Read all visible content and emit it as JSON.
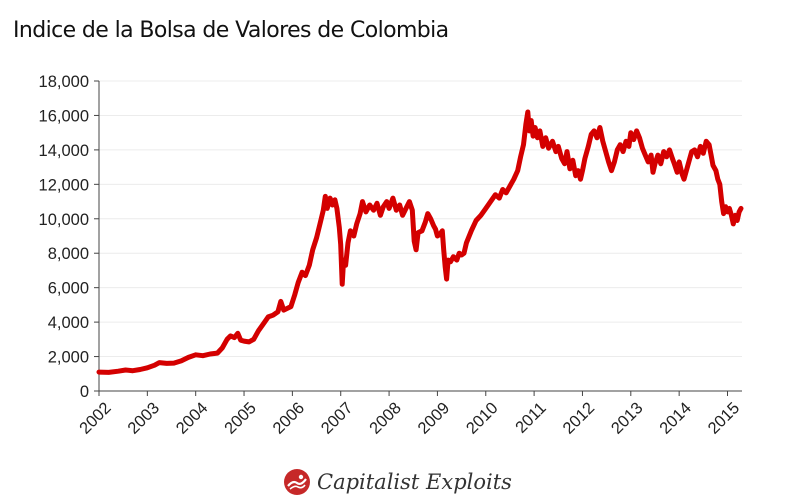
{
  "title": "Indice de la Bolsa de Valores de Colombia",
  "footer": {
    "brand": "Capitalist Exploits",
    "logo_icon": "capitalist-exploits-logo-icon"
  },
  "colors": {
    "line": "#d40000",
    "grid": "#ececec",
    "axis": "#444444"
  },
  "chart_data": {
    "type": "line",
    "title": "Indice de la Bolsa de Valores de Colombia",
    "xlabel": "",
    "ylabel": "",
    "xlim": [
      2002,
      2015.3
    ],
    "ylim": [
      0,
      18000
    ],
    "y_ticks": [
      0,
      2000,
      4000,
      6000,
      8000,
      10000,
      12000,
      14000,
      16000,
      18000
    ],
    "y_tick_labels": [
      "0",
      "2,000",
      "4,000",
      "6,000",
      "8,000",
      "10,000",
      "12,000",
      "14,000",
      "16,000",
      "18,000"
    ],
    "x_ticks": [
      2002,
      2003,
      2004,
      2005,
      2006,
      2007,
      2008,
      2009,
      2010,
      2011,
      2012,
      2013,
      2014,
      2015
    ],
    "x_tick_labels": [
      "2002",
      "2003",
      "2004",
      "2005",
      "2006",
      "2007",
      "2008",
      "2009",
      "2010",
      "2011",
      "2012",
      "2013",
      "2014",
      "2015"
    ],
    "grid": true,
    "series": [
      {
        "color": "#d40000",
        "points": [
          [
            2002.0,
            1100
          ],
          [
            2002.2,
            1080
          ],
          [
            2002.4,
            1150
          ],
          [
            2002.55,
            1220
          ],
          [
            2002.7,
            1180
          ],
          [
            2002.85,
            1250
          ],
          [
            2003.0,
            1350
          ],
          [
            2003.15,
            1500
          ],
          [
            2003.25,
            1650
          ],
          [
            2003.4,
            1600
          ],
          [
            2003.55,
            1620
          ],
          [
            2003.7,
            1750
          ],
          [
            2003.85,
            1950
          ],
          [
            2004.0,
            2100
          ],
          [
            2004.15,
            2050
          ],
          [
            2004.3,
            2150
          ],
          [
            2004.45,
            2200
          ],
          [
            2004.55,
            2500
          ],
          [
            2004.65,
            3000
          ],
          [
            2004.72,
            3200
          ],
          [
            2004.8,
            3100
          ],
          [
            2004.87,
            3350
          ],
          [
            2004.93,
            2950
          ],
          [
            2005.0,
            2900
          ],
          [
            2005.1,
            2850
          ],
          [
            2005.2,
            3000
          ],
          [
            2005.3,
            3500
          ],
          [
            2005.4,
            3900
          ],
          [
            2005.5,
            4300
          ],
          [
            2005.6,
            4400
          ],
          [
            2005.7,
            4600
          ],
          [
            2005.76,
            5200
          ],
          [
            2005.82,
            4700
          ],
          [
            2005.9,
            4800
          ],
          [
            2005.97,
            4900
          ],
          [
            2006.05,
            5600
          ],
          [
            2006.12,
            6300
          ],
          [
            2006.2,
            6900
          ],
          [
            2006.27,
            6700
          ],
          [
            2006.35,
            7300
          ],
          [
            2006.42,
            8200
          ],
          [
            2006.5,
            8900
          ],
          [
            2006.58,
            9800
          ],
          [
            2006.64,
            10500
          ],
          [
            2006.68,
            11300
          ],
          [
            2006.72,
            10600
          ],
          [
            2006.78,
            11200
          ],
          [
            2006.83,
            10800
          ],
          [
            2006.88,
            11100
          ],
          [
            2006.92,
            10600
          ],
          [
            2006.97,
            9500
          ],
          [
            2007.0,
            8500
          ],
          [
            2007.03,
            6200
          ],
          [
            2007.06,
            7600
          ],
          [
            2007.1,
            7300
          ],
          [
            2007.15,
            8600
          ],
          [
            2007.2,
            9300
          ],
          [
            2007.27,
            9000
          ],
          [
            2007.33,
            9700
          ],
          [
            2007.4,
            10300
          ],
          [
            2007.45,
            11000
          ],
          [
            2007.52,
            10400
          ],
          [
            2007.6,
            10800
          ],
          [
            2007.68,
            10500
          ],
          [
            2007.75,
            10900
          ],
          [
            2007.82,
            10200
          ],
          [
            2007.88,
            10700
          ],
          [
            2007.95,
            11000
          ],
          [
            2008.0,
            10600
          ],
          [
            2008.08,
            11200
          ],
          [
            2008.15,
            10500
          ],
          [
            2008.22,
            10800
          ],
          [
            2008.28,
            10200
          ],
          [
            2008.35,
            10600
          ],
          [
            2008.42,
            11000
          ],
          [
            2008.48,
            10500
          ],
          [
            2008.52,
            8700
          ],
          [
            2008.56,
            8200
          ],
          [
            2008.6,
            9200
          ],
          [
            2008.68,
            9300
          ],
          [
            2008.75,
            9800
          ],
          [
            2008.8,
            10300
          ],
          [
            2008.86,
            10000
          ],
          [
            2008.92,
            9600
          ],
          [
            2008.96,
            9400
          ],
          [
            2009.0,
            9000
          ],
          [
            2009.05,
            9100
          ],
          [
            2009.1,
            9300
          ],
          [
            2009.13,
            8200
          ],
          [
            2009.16,
            7200
          ],
          [
            2009.19,
            6500
          ],
          [
            2009.22,
            7600
          ],
          [
            2009.27,
            7500
          ],
          [
            2009.33,
            7800
          ],
          [
            2009.4,
            7600
          ],
          [
            2009.45,
            8000
          ],
          [
            2009.5,
            7900
          ],
          [
            2009.55,
            8000
          ],
          [
            2009.6,
            8600
          ],
          [
            2009.7,
            9300
          ],
          [
            2009.8,
            9900
          ],
          [
            2009.9,
            10200
          ],
          [
            2010.0,
            10600
          ],
          [
            2010.1,
            11000
          ],
          [
            2010.2,
            11400
          ],
          [
            2010.28,
            11200
          ],
          [
            2010.35,
            11700
          ],
          [
            2010.42,
            11500
          ],
          [
            2010.5,
            11900
          ],
          [
            2010.58,
            12300
          ],
          [
            2010.66,
            12800
          ],
          [
            2010.72,
            13600
          ],
          [
            2010.78,
            14300
          ],
          [
            2010.83,
            15500
          ],
          [
            2010.87,
            16200
          ],
          [
            2010.9,
            15100
          ],
          [
            2010.94,
            15700
          ],
          [
            2010.98,
            14800
          ],
          [
            2011.02,
            15300
          ],
          [
            2011.07,
            14700
          ],
          [
            2011.12,
            15100
          ],
          [
            2011.18,
            14200
          ],
          [
            2011.24,
            14700
          ],
          [
            2011.3,
            14100
          ],
          [
            2011.38,
            14500
          ],
          [
            2011.45,
            13900
          ],
          [
            2011.5,
            14200
          ],
          [
            2011.57,
            13500
          ],
          [
            2011.63,
            13200
          ],
          [
            2011.68,
            13900
          ],
          [
            2011.74,
            12900
          ],
          [
            2011.8,
            13400
          ],
          [
            2011.86,
            12500
          ],
          [
            2011.91,
            12800
          ],
          [
            2011.96,
            12300
          ],
          [
            2012.0,
            12800
          ],
          [
            2012.05,
            13500
          ],
          [
            2012.12,
            14200
          ],
          [
            2012.18,
            14900
          ],
          [
            2012.24,
            15100
          ],
          [
            2012.3,
            14700
          ],
          [
            2012.36,
            15300
          ],
          [
            2012.42,
            14500
          ],
          [
            2012.48,
            13900
          ],
          [
            2012.54,
            13300
          ],
          [
            2012.6,
            12800
          ],
          [
            2012.66,
            13300
          ],
          [
            2012.72,
            14000
          ],
          [
            2012.78,
            14300
          ],
          [
            2012.84,
            13900
          ],
          [
            2012.9,
            14500
          ],
          [
            2012.96,
            14200
          ],
          [
            2013.0,
            15000
          ],
          [
            2013.06,
            14600
          ],
          [
            2013.12,
            15100
          ],
          [
            2013.18,
            14700
          ],
          [
            2013.24,
            14100
          ],
          [
            2013.3,
            13700
          ],
          [
            2013.36,
            13300
          ],
          [
            2013.42,
            13700
          ],
          [
            2013.46,
            12700
          ],
          [
            2013.5,
            13200
          ],
          [
            2013.56,
            13700
          ],
          [
            2013.62,
            13200
          ],
          [
            2013.68,
            13900
          ],
          [
            2013.74,
            13600
          ],
          [
            2013.8,
            14000
          ],
          [
            2013.86,
            13500
          ],
          [
            2013.9,
            13200
          ],
          [
            2013.96,
            12700
          ],
          [
            2014.0,
            13300
          ],
          [
            2014.06,
            12600
          ],
          [
            2014.1,
            12300
          ],
          [
            2014.15,
            12800
          ],
          [
            2014.2,
            13300
          ],
          [
            2014.26,
            13900
          ],
          [
            2014.32,
            14000
          ],
          [
            2014.38,
            13600
          ],
          [
            2014.44,
            14200
          ],
          [
            2014.5,
            13800
          ],
          [
            2014.56,
            14500
          ],
          [
            2014.62,
            14300
          ],
          [
            2014.66,
            13700
          ],
          [
            2014.7,
            13100
          ],
          [
            2014.76,
            12800
          ],
          [
            2014.8,
            12300
          ],
          [
            2014.84,
            12000
          ],
          [
            2014.88,
            11000
          ],
          [
            2014.92,
            10300
          ],
          [
            2014.96,
            10700
          ],
          [
            2015.0,
            10400
          ],
          [
            2015.04,
            10600
          ],
          [
            2015.08,
            10200
          ],
          [
            2015.12,
            9700
          ],
          [
            2015.16,
            10200
          ],
          [
            2015.2,
            9900
          ],
          [
            2015.24,
            10400
          ],
          [
            2015.28,
            10600
          ]
        ]
      }
    ]
  }
}
